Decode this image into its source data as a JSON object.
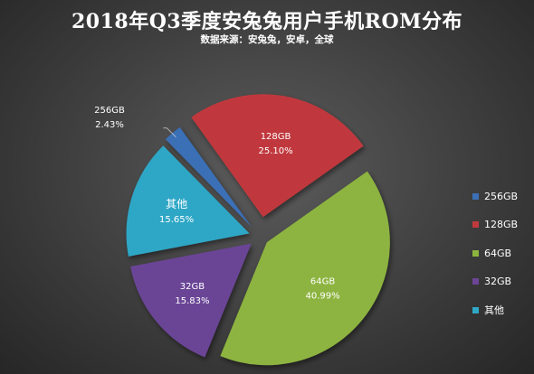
{
  "chart_data": {
    "type": "pie",
    "title": "2018年Q3季度安兔兔用户手机ROM分布",
    "subtitle": "数据来源：安兔兔，安卓，全球",
    "legend_position": "right",
    "slices": [
      {
        "label": "256GB",
        "value": 2.43,
        "value_text": "2.43%",
        "color": "#3b6fb6"
      },
      {
        "label": "128GB",
        "value": 25.1,
        "value_text": "25.10%",
        "color": "#c0393c"
      },
      {
        "label": "64GB",
        "value": 40.99,
        "value_text": "40.99%",
        "color": "#8db43f"
      },
      {
        "label": "32GB",
        "value": 15.83,
        "value_text": "15.83%",
        "color": "#6b4596"
      },
      {
        "label": "其他",
        "value": 15.65,
        "value_text": "15.65%",
        "color": "#2fa7c6"
      }
    ],
    "legend": [
      "256GB",
      "128GB",
      "64GB",
      "32GB",
      "其他"
    ]
  }
}
